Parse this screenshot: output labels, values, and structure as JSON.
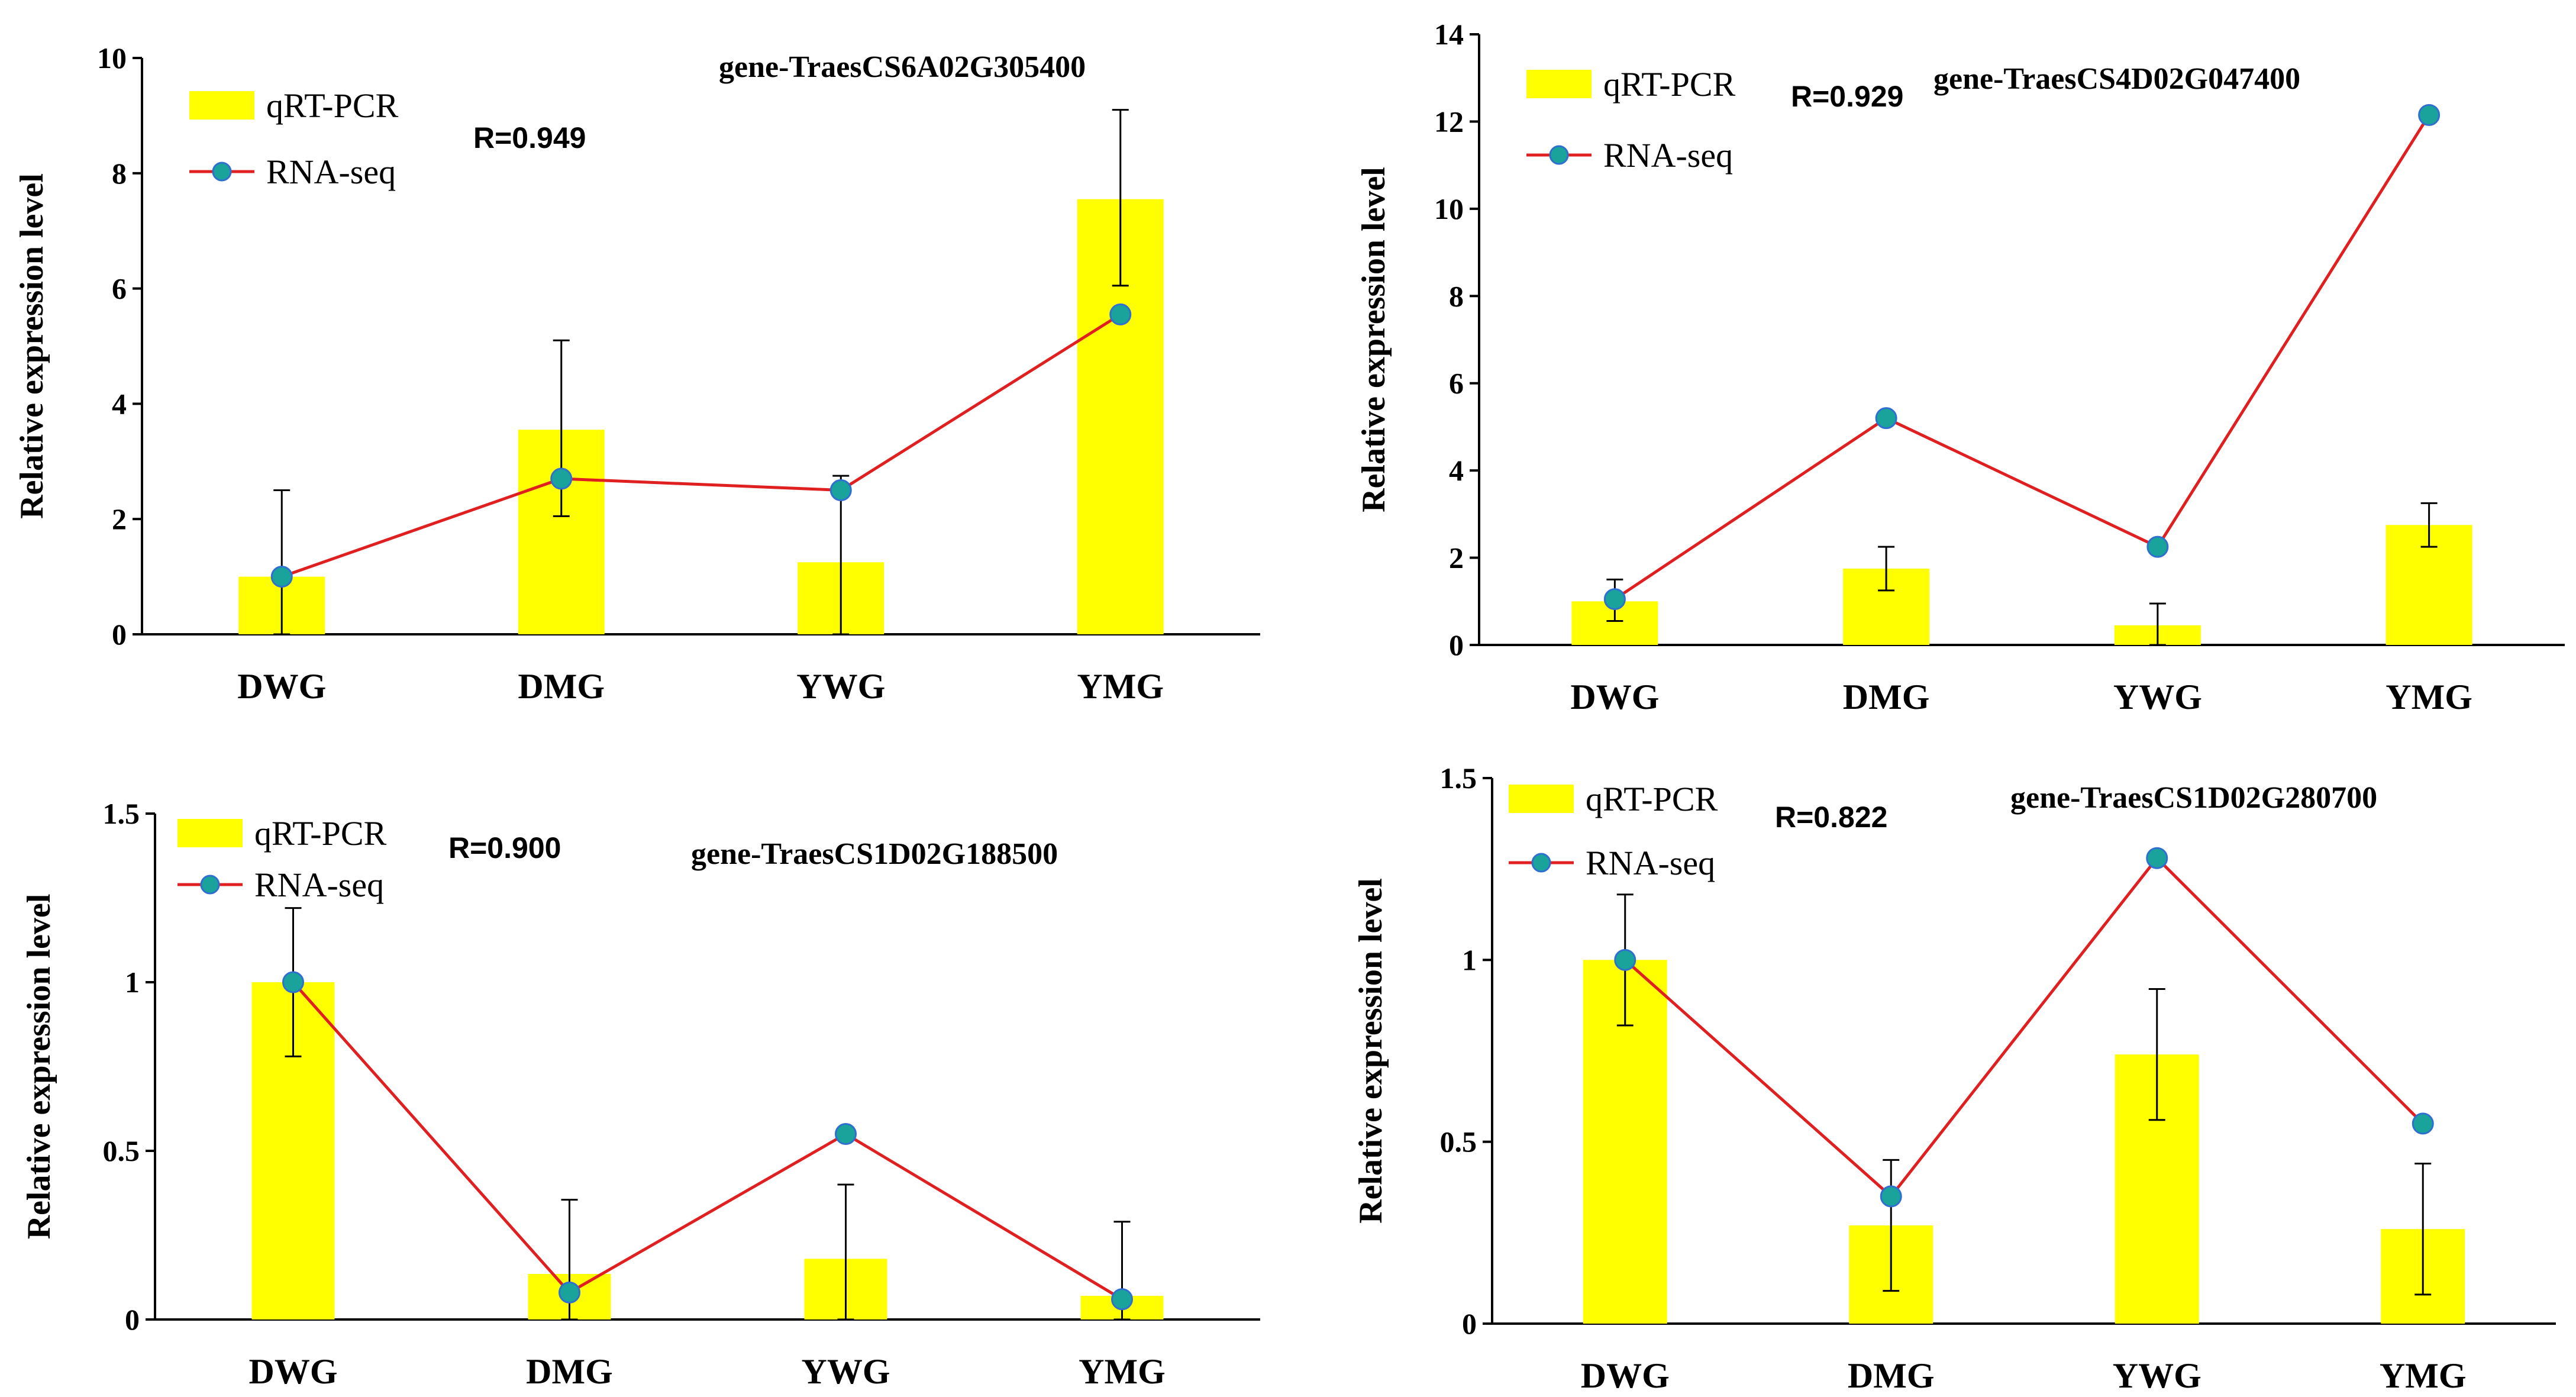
{
  "colors": {
    "bar": "#ffff00",
    "line": "#e02020",
    "marker_fill": "#1aa39b",
    "marker_edge": "#2f6fd0",
    "axis": "#000000",
    "error": "#000000"
  },
  "legend": {
    "bar_label": "qRT-PCR",
    "line_label": "RNA-seq"
  },
  "chart_data": [
    {
      "type": "bar",
      "title": "gene-TraesCS6A02G305400",
      "correlation": "R=0.949",
      "ylabel": "Relative expression level",
      "categories": [
        "DWG",
        "DMG",
        "YWG",
        "YMG"
      ],
      "ylim": [
        0,
        10
      ],
      "yticks": [
        "0",
        "2",
        "4",
        "6",
        "8",
        "10"
      ],
      "series": [
        {
          "name": "qRT-PCR",
          "kind": "bar",
          "values": [
            1.0,
            3.55,
            1.25,
            7.55
          ],
          "err_low": [
            1.0,
            1.5,
            1.25,
            1.5
          ],
          "err_high": [
            1.5,
            1.55,
            1.5,
            1.55
          ]
        },
        {
          "name": "RNA-seq",
          "kind": "line",
          "values": [
            1.0,
            2.7,
            2.5,
            5.55
          ]
        }
      ]
    },
    {
      "type": "bar",
      "title": "gene-TraesCS4D02G047400",
      "correlation": "R=0.929",
      "ylabel": "Relative expression level",
      "categories": [
        "DWG",
        "DMG",
        "YWG",
        "YMG"
      ],
      "ylim": [
        0,
        14
      ],
      "yticks": [
        "0",
        "2",
        "4",
        "6",
        "8",
        "10",
        "12",
        "14"
      ],
      "series": [
        {
          "name": "qRT-PCR",
          "kind": "bar",
          "values": [
            1.0,
            1.75,
            0.45,
            2.75
          ],
          "err_low": [
            0.45,
            0.5,
            0.45,
            0.5
          ],
          "err_high": [
            0.5,
            0.5,
            0.5,
            0.5
          ]
        },
        {
          "name": "RNA-seq",
          "kind": "line",
          "values": [
            1.05,
            5.2,
            2.25,
            12.15
          ]
        }
      ]
    },
    {
      "type": "bar",
      "title": "gene-TraesCS1D02G188500",
      "correlation": "R=0.900",
      "ylabel": "Relative expression level",
      "categories": [
        "DWG",
        "DMG",
        "YWG",
        "YMG"
      ],
      "ylim": [
        0,
        1.5
      ],
      "yticks": [
        "0",
        "0.5",
        "1",
        "1.5"
      ],
      "series": [
        {
          "name": "qRT-PCR",
          "kind": "bar",
          "values": [
            1.0,
            0.135,
            0.18,
            0.07
          ],
          "err_low": [
            0.22,
            0.135,
            0.18,
            0.07
          ],
          "err_high": [
            0.22,
            0.22,
            0.22,
            0.22
          ]
        },
        {
          "name": "RNA-seq",
          "kind": "line",
          "values": [
            1.0,
            0.08,
            0.55,
            0.06
          ]
        }
      ]
    },
    {
      "type": "bar",
      "title": "gene-TraesCS1D02G280700",
      "correlation": "R=0.822",
      "ylabel": "Relative expression level",
      "categories": [
        "DWG",
        "DMG",
        "YWG",
        "YMG"
      ],
      "ylim": [
        0,
        1.5
      ],
      "yticks": [
        "0",
        "0.5",
        "1",
        "1.5"
      ],
      "series": [
        {
          "name": "qRT-PCR",
          "kind": "bar",
          "values": [
            1.0,
            0.27,
            0.74,
            0.26
          ],
          "err_low": [
            0.18,
            0.18,
            0.18,
            0.18
          ],
          "err_high": [
            0.18,
            0.18,
            0.18,
            0.18
          ]
        },
        {
          "name": "RNA-seq",
          "kind": "line",
          "values": [
            1.0,
            0.35,
            1.28,
            0.55
          ]
        }
      ]
    }
  ]
}
